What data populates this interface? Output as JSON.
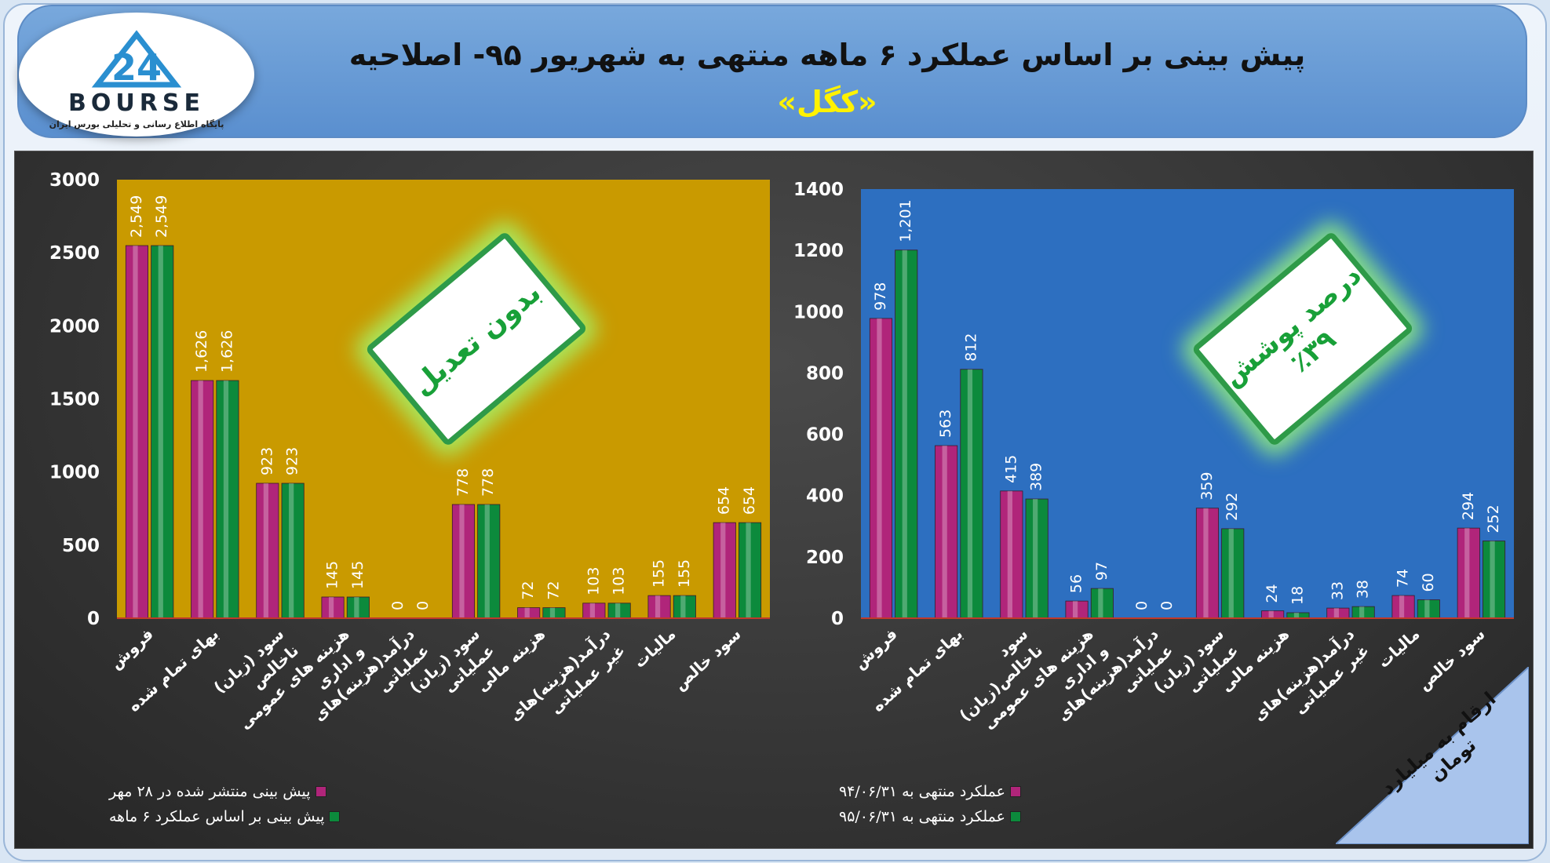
{
  "header": {
    "title": "پیش بینی بر اساس عملکرد ۶ ماهه منتهی به شهریور ۹۵- اصلاحیه",
    "subtitle": "«کگل»"
  },
  "logo": {
    "number": "24",
    "word": "BOURSE",
    "tagline": "پایگاه اطلاع رسانی و تحلیلی بورس ایران"
  },
  "colors": {
    "magenta": "#b0257a",
    "green": "#0c8a3c",
    "left_plot_bg": "#c99a00",
    "right_plot_bg": "#2d6fc0"
  },
  "badges": {
    "left": {
      "line1": "بدون تعدیل"
    },
    "right": {
      "line1": "درصد پوشش",
      "line2": "٪۳۹"
    }
  },
  "ribbon_text": "ارقام به میلیارد تومان",
  "chart_data": [
    {
      "type": "bar",
      "categories": [
        "فروش",
        "بهای تمام شده",
        "سود (زیان) ناخالص",
        "هزینه های عمومی و اداری",
        "درآمد(هزینه)های عملیاتی",
        "سود (زیان) عملیاتی",
        "هزینه مالی",
        "درآمد(هزینه)های غیر عملیاتی",
        "مالیات",
        "سود خالص"
      ],
      "series": [
        {
          "name": "پیش بینی منتشر شده در ۲۸ مهر",
          "values": [
            2549,
            1626,
            923,
            145,
            0,
            778,
            72,
            103,
            155,
            654
          ],
          "labels": [
            "2,549",
            "1,626",
            "923",
            "145",
            "0",
            "778",
            "72",
            "103",
            "155",
            "654"
          ]
        },
        {
          "name": "پیش بینی بر اساس عملکرد ۶ ماهه",
          "values": [
            2549,
            1626,
            923,
            145,
            0,
            778,
            72,
            103,
            155,
            654
          ],
          "labels": [
            "2,549",
            "1,626",
            "923",
            "145",
            "0",
            "778",
            "72",
            "103",
            "155",
            "654"
          ]
        }
      ],
      "yticks": [
        "0",
        "500",
        "1000",
        "1500",
        "2000",
        "2500",
        "3000"
      ],
      "ylim": [
        0,
        3000
      ],
      "legend": "bottom-left",
      "grid": false
    },
    {
      "type": "bar",
      "categories": [
        "فروش",
        "بهای تمام شده",
        "سود (زیان)ناخالص",
        "هزینه های عمومی و اداری",
        "درآمد(هزینه)های عملیاتی",
        "سود (زیان) عملیاتی",
        "هزینه مالی",
        "درآمد(هزینه)های غیر عملیاتی",
        "مالیات",
        "سود خالص"
      ],
      "series": [
        {
          "name": "عملکرد منتهی به ۹۴/۰۶/۳۱",
          "values": [
            978,
            563,
            415,
            56,
            0,
            359,
            24,
            33,
            74,
            294
          ],
          "labels": [
            "978",
            "563",
            "415",
            "56",
            "0",
            "359",
            "24",
            "33",
            "74",
            "294"
          ]
        },
        {
          "name": "عملکرد منتهی به ۹۵/۰۶/۳۱",
          "values": [
            1201,
            812,
            389,
            97,
            0,
            292,
            18,
            38,
            60,
            252
          ],
          "labels": [
            "1,201",
            "812",
            "389",
            "97",
            "0",
            "292",
            "18",
            "38",
            "60",
            "252"
          ]
        }
      ],
      "yticks": [
        "0",
        "200",
        "400",
        "600",
        "800",
        "1000",
        "1200",
        "1400"
      ],
      "ylim": [
        0,
        1400
      ],
      "legend": "bottom-left",
      "grid": false
    }
  ]
}
